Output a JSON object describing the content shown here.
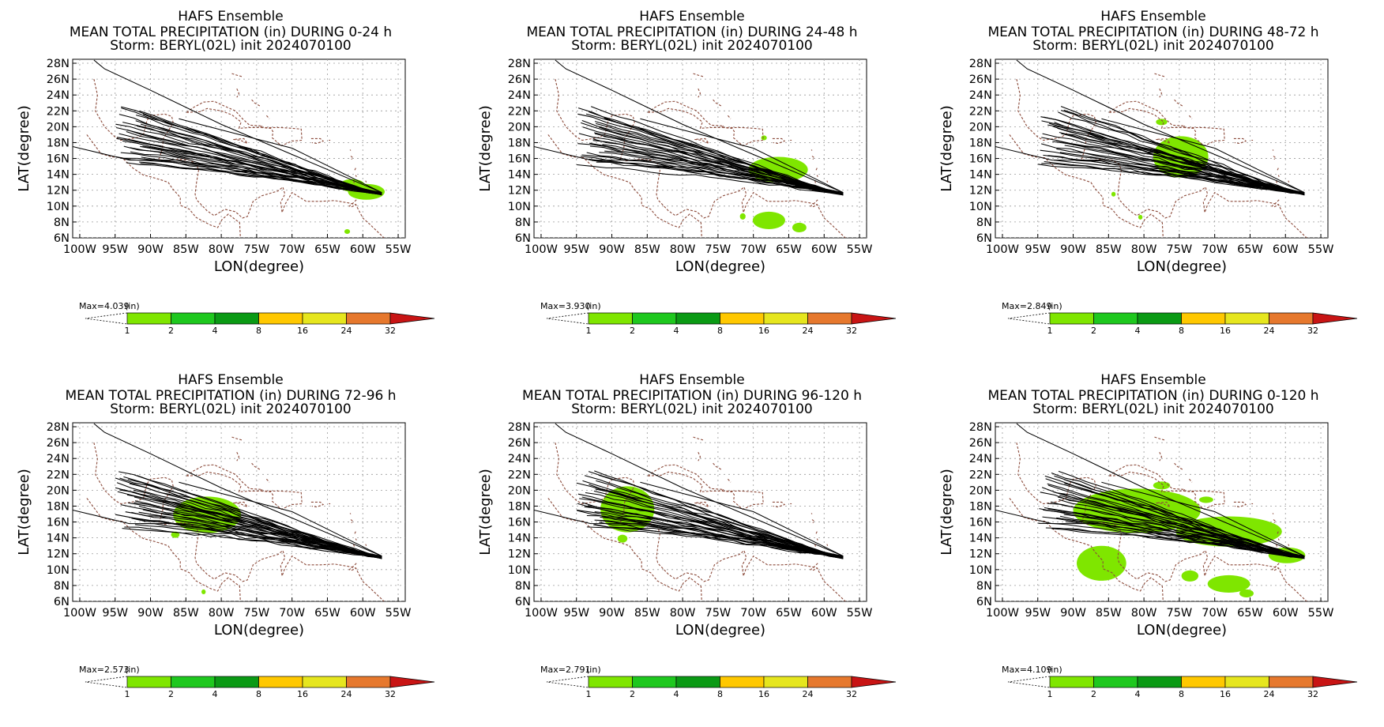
{
  "panels": [
    {
      "title1": "HAFS Ensemble",
      "title2": "MEAN TOTAL PRECIPITATION (in) DURING  0-24 h",
      "title3": "Storm: BERYL(02L) init 2024070100",
      "max": "Max=4.039",
      "rain": [
        {
          "lon": 59.5,
          "lat": 11.8,
          "rx": 2.6,
          "ry": 1.0
        },
        {
          "lon": 61.5,
          "lat": 12.6,
          "rx": 1.8,
          "ry": 0.8
        },
        {
          "lon": 62.2,
          "lat": 6.8,
          "rx": 0.4,
          "ry": 0.3
        }
      ]
    },
    {
      "title1": "HAFS Ensemble",
      "title2": "MEAN TOTAL PRECIPITATION (in) DURING 24-48 h",
      "title3": "Storm: BERYL(02L) init 2024070100",
      "max": "Max=3.930",
      "rain": [
        {
          "lon": 66.5,
          "lat": 14.6,
          "rx": 4.2,
          "ry": 1.6
        },
        {
          "lon": 67.8,
          "lat": 8.2,
          "rx": 2.3,
          "ry": 1.1
        },
        {
          "lon": 63.5,
          "lat": 7.3,
          "rx": 1.0,
          "ry": 0.6
        },
        {
          "lon": 71.5,
          "lat": 8.7,
          "rx": 0.4,
          "ry": 0.4
        },
        {
          "lon": 68.5,
          "lat": 18.6,
          "rx": 0.4,
          "ry": 0.3
        }
      ]
    },
    {
      "title1": "HAFS Ensemble",
      "title2": "MEAN TOTAL PRECIPITATION (in) DURING 48-72 h",
      "title3": "Storm: BERYL(02L) init 2024070100",
      "max": "Max=2.849",
      "rain": [
        {
          "lon": 74.8,
          "lat": 16.2,
          "rx": 3.9,
          "ry": 2.6
        },
        {
          "lon": 77.5,
          "lat": 20.6,
          "rx": 0.8,
          "ry": 0.4
        },
        {
          "lon": 84.3,
          "lat": 11.5,
          "rx": 0.3,
          "ry": 0.3
        },
        {
          "lon": 80.5,
          "lat": 8.6,
          "rx": 0.3,
          "ry": 0.3
        }
      ]
    },
    {
      "title1": "HAFS Ensemble",
      "title2": "MEAN TOTAL PRECIPITATION (in) DURING 72-96 h",
      "title3": "Storm: BERYL(02L) init 2024070100",
      "max": "Max=2.573",
      "rain": [
        {
          "lon": 82.0,
          "lat": 16.9,
          "rx": 4.8,
          "ry": 2.3
        },
        {
          "lon": 86.5,
          "lat": 14.4,
          "rx": 0.6,
          "ry": 0.4
        },
        {
          "lon": 82.5,
          "lat": 7.2,
          "rx": 0.3,
          "ry": 0.3
        }
      ]
    },
    {
      "title1": "HAFS Ensemble",
      "title2": "MEAN TOTAL PRECIPITATION (in) DURING 96-120 h",
      "title3": "Storm: BERYL(02L) init 2024070100",
      "max": "Max=2.791",
      "rain": [
        {
          "lon": 87.8,
          "lat": 17.6,
          "rx": 3.8,
          "ry": 2.9
        },
        {
          "lon": 88.5,
          "lat": 13.9,
          "rx": 0.7,
          "ry": 0.5
        }
      ]
    },
    {
      "title1": "HAFS Ensemble",
      "title2": "MEAN TOTAL PRECIPITATION (in) DURING 0-120 h",
      "title3": "Storm: BERYL(02L) init 2024070100",
      "max": "Max=4.109",
      "rain": [
        {
          "lon": 81.0,
          "lat": 17.4,
          "rx": 9.0,
          "ry": 2.8
        },
        {
          "lon": 68.0,
          "lat": 14.8,
          "rx": 7.5,
          "ry": 1.9
        },
        {
          "lon": 59.8,
          "lat": 11.8,
          "rx": 2.6,
          "ry": 1.0
        },
        {
          "lon": 86.0,
          "lat": 10.8,
          "rx": 3.5,
          "ry": 2.2
        },
        {
          "lon": 68.0,
          "lat": 8.2,
          "rx": 3.0,
          "ry": 1.1
        },
        {
          "lon": 73.5,
          "lat": 9.2,
          "rx": 1.2,
          "ry": 0.7
        },
        {
          "lon": 65.5,
          "lat": 7.0,
          "rx": 1.0,
          "ry": 0.5
        },
        {
          "lon": 77.5,
          "lat": 20.6,
          "rx": 1.2,
          "ry": 0.5
        },
        {
          "lon": 71.2,
          "lat": 18.8,
          "rx": 1.0,
          "ry": 0.4
        }
      ]
    }
  ],
  "xaxis": {
    "label": "LON(degree)",
    "ticks": [
      100,
      95,
      90,
      85,
      80,
      75,
      70,
      65,
      60,
      55
    ],
    "tick_labels": [
      "100W",
      "95W",
      "90W",
      "85W",
      "80W",
      "75W",
      "70W",
      "65W",
      "60W",
      "55W"
    ],
    "range": [
      101,
      54
    ]
  },
  "yaxis": {
    "label": "LAT(degree)",
    "ticks": [
      6,
      8,
      10,
      12,
      14,
      16,
      18,
      20,
      22,
      24,
      26,
      28
    ],
    "tick_labels": [
      "6N",
      "8N",
      "10N",
      "12N",
      "14N",
      "16N",
      "18N",
      "20N",
      "22N",
      "24N",
      "26N",
      "28N"
    ],
    "range": [
      6,
      28.5
    ]
  },
  "colorbar": {
    "unit": "(in)",
    "levels": [
      "1",
      "2",
      "4",
      "8",
      "16",
      "24",
      "32"
    ],
    "colors": [
      "#7fe600",
      "#1ec81e",
      "#0a9a14",
      "#ffc800",
      "#e6e61e",
      "#e6782d",
      "#c81414"
    ]
  },
  "rain_color": "#7fe600",
  "coast_color": "#8b4a3a",
  "tracks": {
    "end_lon": 57.3,
    "end_lat": 11.5,
    "count": 31
  }
}
